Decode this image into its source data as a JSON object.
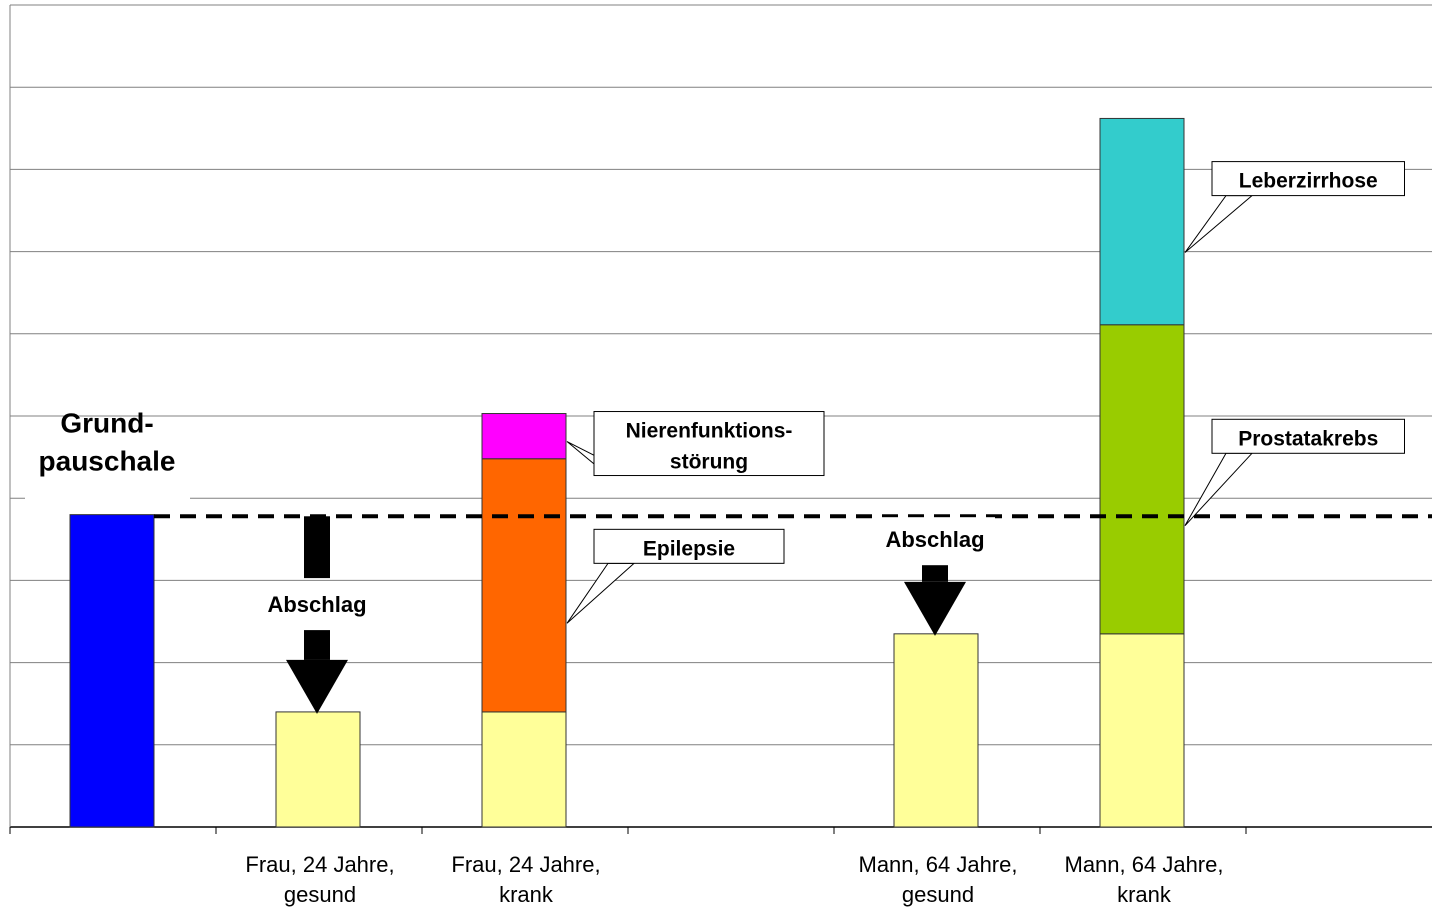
{
  "chart_data": {
    "type": "bar",
    "stacked": true,
    "categories": [
      [
        "",
        ""
      ],
      [
        "Frau, 24 Jahre,",
        "gesund"
      ],
      [
        "Frau, 24 Jahre,",
        "krank"
      ],
      [
        "",
        ""
      ],
      [
        "Mann, 64 Jahre,",
        "gesund"
      ],
      [
        "Mann, 64 Jahre,",
        "krank"
      ],
      [
        "",
        ""
      ]
    ],
    "ylim": [
      0,
      10
    ],
    "grid": true,
    "reference_line": {
      "value": 3.78,
      "style": "dashed",
      "color": "#000000"
    },
    "bars": [
      {
        "category": 0,
        "segments": [
          {
            "value": 3.8,
            "color": "#0000FF"
          }
        ]
      },
      {
        "category": 1,
        "segments": [
          {
            "value": 1.4,
            "color": "#FFFF99"
          }
        ]
      },
      {
        "category": 2,
        "segments": [
          {
            "value": 1.4,
            "color": "#FFFF99"
          },
          {
            "value": 3.08,
            "color": "#FF6600",
            "label": "Epilepsie"
          },
          {
            "value": 0.55,
            "color": "#FF00FF",
            "label": [
              "Nierenfunktions-",
              "störung"
            ]
          }
        ]
      },
      {
        "category": 4,
        "segments": [
          {
            "value": 2.35,
            "color": "#FFFF99"
          }
        ]
      },
      {
        "category": 5,
        "segments": [
          {
            "value": 2.35,
            "color": "#FFFF99"
          },
          {
            "value": 3.76,
            "color": "#99CC00",
            "label": "Prostatakrebs"
          },
          {
            "value": 2.51,
            "color": "#33CCCC",
            "label": "Leberzirrhose"
          }
        ]
      }
    ],
    "annotations": {
      "base_label": [
        "Grund-",
        "pauschale"
      ],
      "arrows": [
        {
          "label": "Abschlag",
          "from": 3.78,
          "to": 1.4,
          "category": 1
        },
        {
          "label": "Abschlag",
          "from": 3.78,
          "to": 2.35,
          "category": 4
        }
      ]
    }
  }
}
